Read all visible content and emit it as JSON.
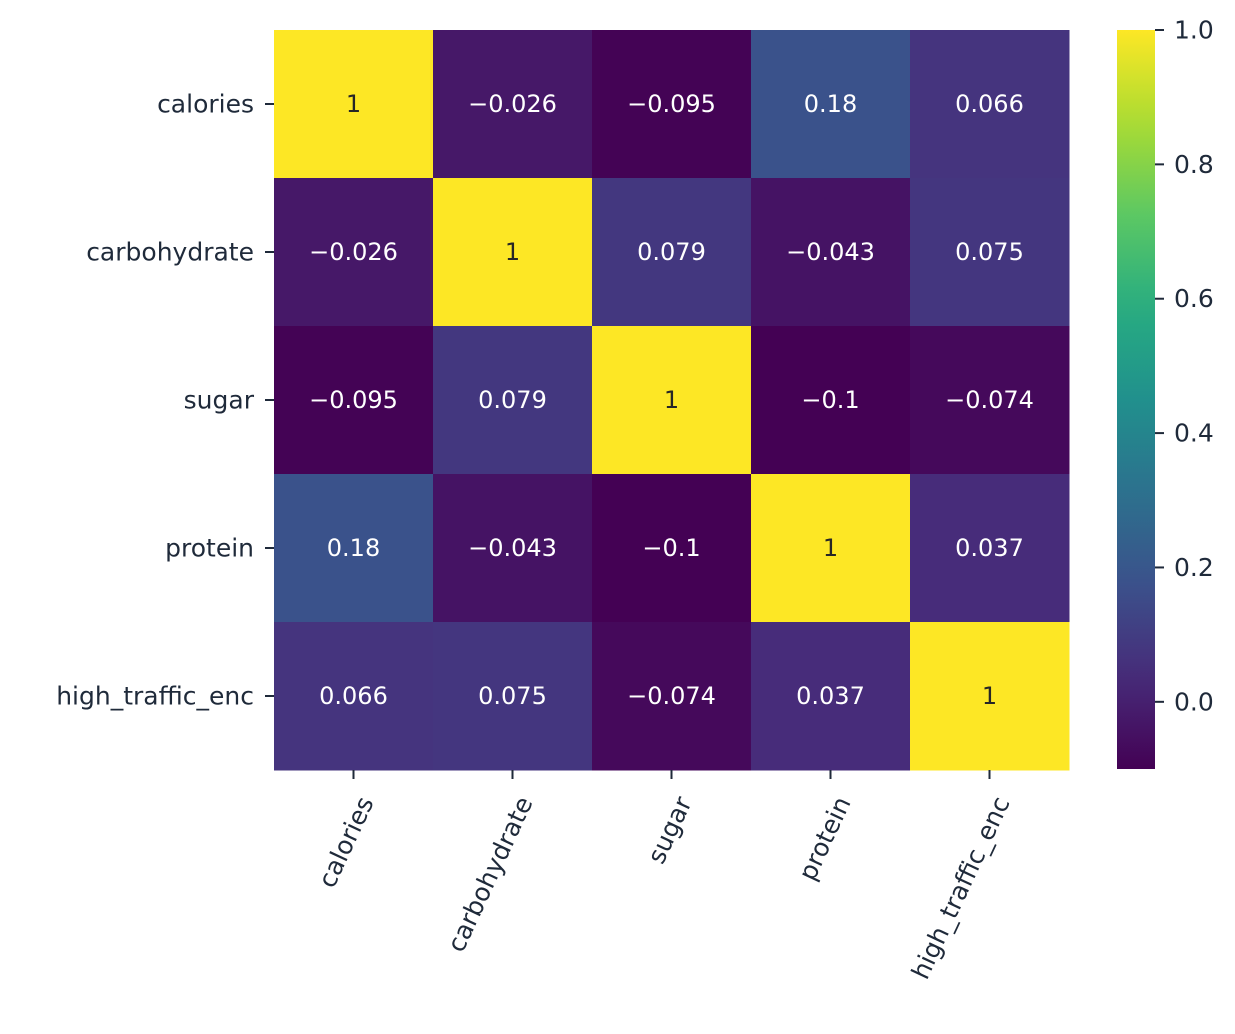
{
  "chart_data": {
    "type": "heatmap",
    "rows": [
      "calories",
      "carbohydrate",
      "sugar",
      "protein",
      "high_traffic_enc"
    ],
    "columns": [
      "calories",
      "carbohydrate",
      "sugar",
      "protein",
      "high_traffic_enc"
    ],
    "values": [
      [
        1,
        -0.026,
        -0.095,
        0.18,
        0.066
      ],
      [
        -0.026,
        1,
        0.079,
        -0.043,
        0.075
      ],
      [
        -0.095,
        0.079,
        1,
        -0.1,
        -0.074
      ],
      [
        0.18,
        -0.043,
        -0.1,
        1,
        0.037
      ],
      [
        0.066,
        0.075,
        -0.074,
        0.037,
        1
      ]
    ],
    "cell_labels": [
      [
        "1",
        "-0.026",
        "-0.095",
        "0.18",
        "0.066"
      ],
      [
        "-0.026",
        "1",
        "0.079",
        "-0.043",
        "0.075"
      ],
      [
        "-0.095",
        "0.079",
        "1",
        "-0.1",
        "-0.074"
      ],
      [
        "0.18",
        "-0.043",
        "-0.1",
        "1",
        "0.037"
      ],
      [
        "0.066",
        "0.075",
        "-0.074",
        "0.037",
        "1"
      ]
    ],
    "colormap": "viridis",
    "vmin": -0.1,
    "vmax": 1.0,
    "colorbar_ticks": [
      0.0,
      0.2,
      0.4,
      0.6,
      0.8,
      1.0
    ],
    "colorbar_tick_labels": [
      "0.0",
      "0.2",
      "0.4",
      "0.6",
      "0.8",
      "1.0"
    ],
    "x_tick_rotation_degrees": 65,
    "title": "",
    "xlabel": "",
    "ylabel": ""
  }
}
